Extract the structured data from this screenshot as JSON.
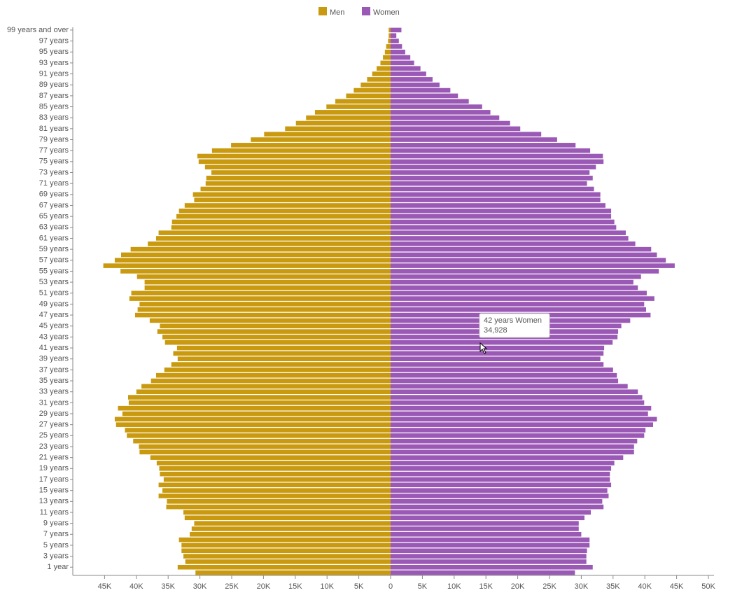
{
  "chart_data": {
    "type": "pyramid",
    "categories": [
      null,
      "1 year",
      null,
      "3 years",
      null,
      "5 years",
      null,
      "7 years",
      null,
      "9 years",
      null,
      "11 years",
      null,
      "13 years",
      null,
      "15 years",
      null,
      "17 years",
      null,
      "19 years",
      null,
      "21 years",
      null,
      "23 years",
      null,
      "25 years",
      null,
      "27 years",
      null,
      "29 years",
      null,
      "31 years",
      null,
      "33 years",
      null,
      "35 years",
      null,
      "37 years",
      null,
      "39 years",
      null,
      "41 years",
      null,
      "43 years",
      null,
      "45 years",
      null,
      "47 years",
      null,
      "49 years",
      null,
      "51 years",
      null,
      "53 years",
      null,
      "55 years",
      null,
      "57 years",
      null,
      "59 years",
      null,
      "61 years",
      null,
      "63 years",
      null,
      "65 years",
      null,
      "67 years",
      null,
      "69 years",
      null,
      "71 years",
      null,
      "73 years",
      null,
      "75 years",
      null,
      "77 years",
      null,
      "79 years",
      null,
      "81 years",
      null,
      "83 years",
      null,
      "85 years",
      null,
      "87 years",
      null,
      "89 years",
      null,
      "91 years",
      null,
      "93 years",
      null,
      "95 years",
      null,
      "97 years",
      null,
      "99 years and over"
    ],
    "series": [
      {
        "name": "Men",
        "color": "#c99a0f",
        "side": "left",
        "values": [
          30700,
          33500,
          32300,
          32600,
          32900,
          32900,
          33300,
          31600,
          31300,
          30900,
          32400,
          32600,
          35300,
          35200,
          36500,
          35900,
          36500,
          35700,
          36300,
          36400,
          36800,
          37800,
          39500,
          39600,
          40500,
          41500,
          41800,
          43200,
          43400,
          42200,
          42900,
          41200,
          41300,
          40000,
          39200,
          37700,
          36900,
          35600,
          34500,
          33500,
          34200,
          33600,
          35500,
          35900,
          36700,
          36300,
          37900,
          40200,
          39800,
          39500,
          41100,
          40800,
          38700,
          38700,
          39900,
          42500,
          45200,
          43400,
          42400,
          40900,
          38200,
          36900,
          36500,
          34500,
          34400,
          33700,
          33300,
          32400,
          30900,
          31100,
          29900,
          29100,
          29000,
          28200,
          29200,
          30200,
          30400,
          28100,
          25100,
          22000,
          19900,
          16600,
          14900,
          13300,
          11900,
          10100,
          8700,
          7000,
          5800,
          4700,
          3700,
          2900,
          2200,
          1600,
          1200,
          900,
          700,
          400,
          300,
          300
        ]
      },
      {
        "name": "Women",
        "color": "#9b59b6",
        "side": "right",
        "values": [
          29000,
          31800,
          30800,
          30800,
          30900,
          31300,
          31300,
          30000,
          29600,
          29600,
          30500,
          31500,
          33500,
          33300,
          34300,
          34100,
          34700,
          34500,
          34500,
          34700,
          35200,
          36600,
          38300,
          38300,
          38800,
          39900,
          40100,
          41300,
          41900,
          40500,
          41000,
          39900,
          39600,
          38900,
          37300,
          35800,
          35600,
          35000,
          33500,
          33000,
          33500,
          33600,
          34928,
          35700,
          35800,
          36300,
          37700,
          40900,
          40200,
          39900,
          41500,
          40300,
          38900,
          38200,
          39400,
          42200,
          44700,
          43300,
          41900,
          41000,
          38500,
          37400,
          37000,
          35500,
          35200,
          34700,
          34700,
          33800,
          33000,
          33000,
          32000,
          30900,
          31800,
          31300,
          32300,
          33500,
          33400,
          31400,
          29100,
          26200,
          23700,
          20400,
          18800,
          17100,
          15700,
          14400,
          12300,
          10600,
          9400,
          7700,
          6600,
          5600,
          4700,
          3700,
          3100,
          2300,
          1800,
          1300,
          900,
          1700
        ]
      }
    ],
    "xlim": [
      -50000,
      50000
    ],
    "xticks": [
      {
        "value": -45000,
        "label": "45K"
      },
      {
        "value": -40000,
        "label": "40K"
      },
      {
        "value": -35000,
        "label": "35K"
      },
      {
        "value": -30000,
        "label": "30K"
      },
      {
        "value": -25000,
        "label": "25K"
      },
      {
        "value": -20000,
        "label": "20K"
      },
      {
        "value": -15000,
        "label": "15K"
      },
      {
        "value": -10000,
        "label": "10K"
      },
      {
        "value": -5000,
        "label": "5K"
      },
      0,
      {
        "value": 5000,
        "label": "5K"
      },
      {
        "value": 10000,
        "label": "10K"
      },
      {
        "value": 15000,
        "label": "15K"
      },
      {
        "value": 20000,
        "label": "20K"
      },
      {
        "value": 25000,
        "label": "25K"
      },
      {
        "value": 30000,
        "label": "30K"
      },
      {
        "value": 35000,
        "label": "35K"
      },
      {
        "value": 40000,
        "label": "40K"
      },
      {
        "value": 45000,
        "label": "45K"
      },
      {
        "value": 50000,
        "label": "50K"
      }
    ],
    "legend": "top",
    "tooltip": {
      "text": "42 years Women",
      "value_label": "34,928"
    }
  }
}
